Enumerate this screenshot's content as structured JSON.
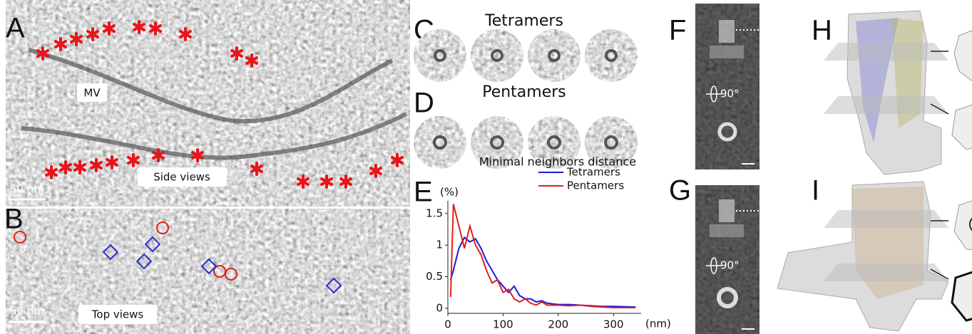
{
  "panels": {
    "a": {
      "label": "A",
      "mv": "MV",
      "views": "Side views",
      "scale_bar": "50 nm"
    },
    "b": {
      "label": "B",
      "views": "Top views",
      "scale_bar": "50 nm"
    },
    "c": {
      "label": "C",
      "title": "Tetramers"
    },
    "d": {
      "label": "D",
      "title": "Pentamers"
    },
    "e": {
      "label": "E"
    },
    "f": {
      "label": "F",
      "rotation": "90°"
    },
    "g": {
      "label": "G",
      "rotation": "90°"
    },
    "h": {
      "label": "H"
    },
    "i": {
      "label": "I"
    }
  },
  "chart_data": {
    "type": "line",
    "title": "Minimal neighbors distance",
    "y_label": "(%)",
    "x_label": "(nm)",
    "x": [
      5,
      10,
      20,
      30,
      40,
      50,
      60,
      70,
      80,
      90,
      100,
      110,
      120,
      130,
      140,
      150,
      160,
      170,
      180,
      200,
      220,
      240,
      260,
      280,
      300,
      340
    ],
    "series": [
      {
        "name": "Tetramers",
        "color": "#1a1adb",
        "values": [
          0.45,
          0.6,
          0.95,
          1.12,
          1.05,
          1.1,
          0.95,
          0.75,
          0.6,
          0.45,
          0.35,
          0.25,
          0.35,
          0.2,
          0.15,
          0.15,
          0.1,
          0.12,
          0.08,
          0.06,
          0.06,
          0.05,
          0.04,
          0.03,
          0.03,
          0.02
        ]
      },
      {
        "name": "Pentamers",
        "color": "#e0201c",
        "values": [
          0.18,
          1.65,
          1.3,
          0.95,
          1.3,
          1.0,
          0.85,
          0.6,
          0.4,
          0.45,
          0.25,
          0.3,
          0.15,
          0.1,
          0.15,
          0.08,
          0.05,
          0.1,
          0.05,
          0.05,
          0.04,
          0.05,
          0.03,
          0.02,
          0.01,
          0.01
        ]
      }
    ],
    "xlim": [
      0,
      350
    ],
    "ylim": [
      -0.08,
      1.7
    ],
    "xticks": [
      0,
      100,
      200,
      300
    ],
    "yticks": [
      0,
      0.5,
      1.0,
      1.5
    ]
  }
}
